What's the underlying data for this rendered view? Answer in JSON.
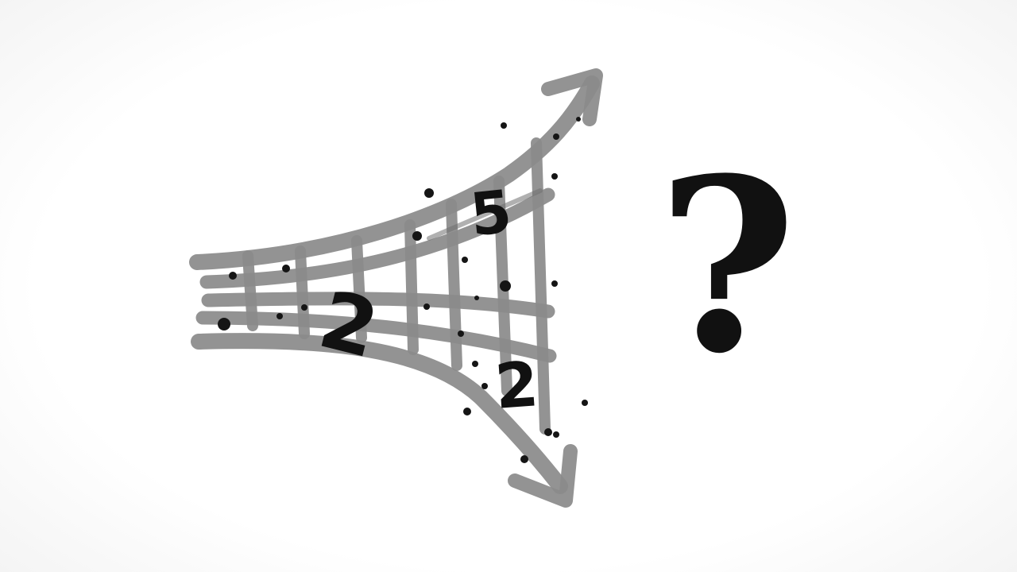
{
  "numbers": {
    "upper": "5",
    "left": "2",
    "lower": "2"
  },
  "question_mark": "?",
  "colors": {
    "grid": "#8a8a8a",
    "ink": "#111111",
    "background": "#ffffff"
  }
}
